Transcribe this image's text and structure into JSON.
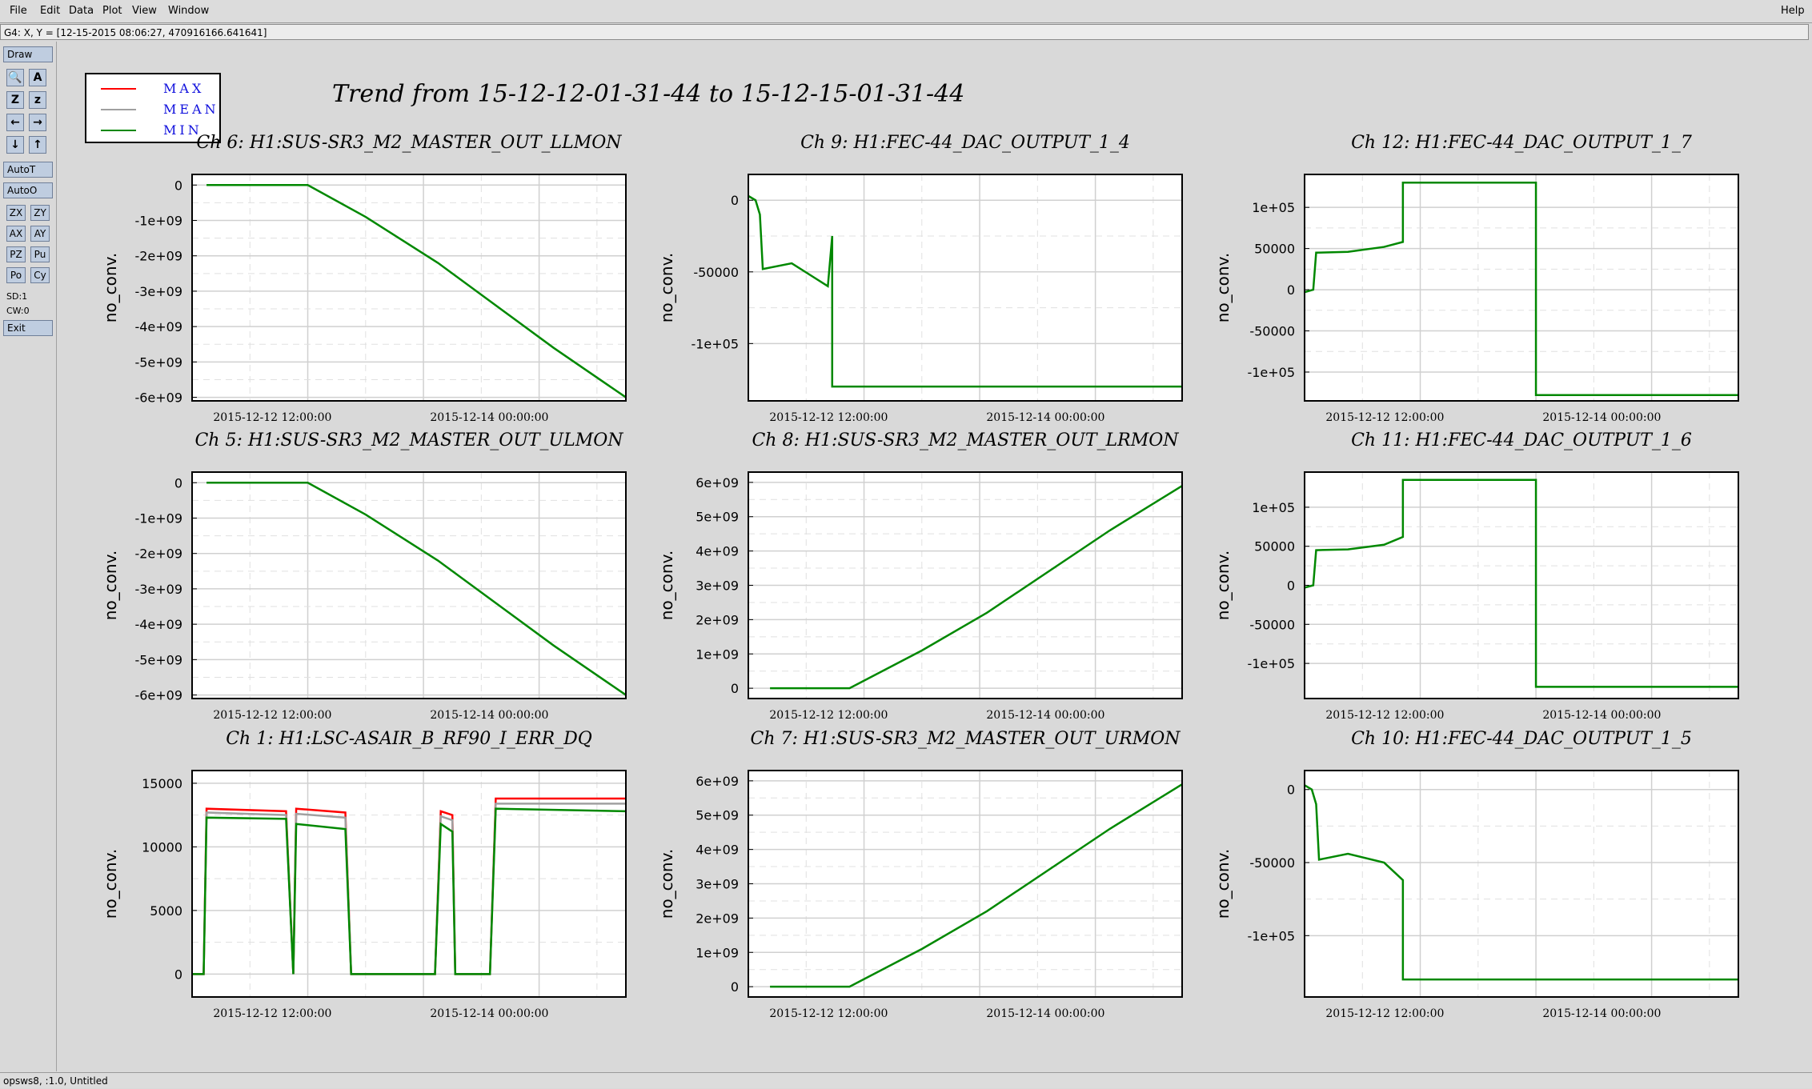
{
  "menu": {
    "file": "File",
    "edit": "Edit",
    "data": "Data",
    "plot": "Plot",
    "view": "View",
    "window": "Window",
    "help": "Help"
  },
  "coord_readout": "G4: X, Y = [12-15-2015 08:06:27, 470916166.641641]",
  "sidebar": {
    "draw": "Draw",
    "icons": [
      "zoom-icon",
      "as-icon",
      "z-large-icon",
      "z-small-icon",
      "left-arrow-icon",
      "right-arrow-icon",
      "down-arrow-icon",
      "up-arrow-icon"
    ],
    "icon_glyphs": [
      "🔍",
      "A",
      "Z",
      "z",
      "←",
      "→",
      "↓",
      "↑"
    ],
    "autot": "AutoT",
    "autoo": "AutoO",
    "small_buttons": [
      "ZX",
      "ZY",
      "AX",
      "AY",
      "PZ",
      "Pu",
      "Po",
      "Cy"
    ],
    "sd": "SD:1",
    "cw": "CW:0",
    "exit": "Exit"
  },
  "status": "opsws8, :1.0, Untitled",
  "main_title": "Trend from 15-12-12-01-31-44 to 15-12-15-01-31-44",
  "legend": [
    {
      "label": "MAX",
      "color": "#ff0000"
    },
    {
      "label": "MEAN",
      "color": "#a0a0a0"
    },
    {
      "label": "MIN",
      "color": "#008800"
    }
  ],
  "colors": {
    "max": "#ff0000",
    "mean": "#a0a0a0",
    "min": "#008800",
    "grid": "#c8c8c8"
  },
  "chart_data": [
    {
      "type": "line",
      "title": "Ch 6: H1:SUS-SR3_M2_MASTER_OUT_LLMON",
      "ylabel": "no_conv.",
      "xticks": [
        "2015-12-12 12:00:00",
        "2015-12-14 00:00:00"
      ],
      "yticks": [
        "0",
        "-1e+09",
        "-2e+09",
        "-3e+09",
        "-4e+09",
        "-5e+09",
        "-6e+09"
      ],
      "ylim": [
        -6100000000.0,
        300000000.0
      ],
      "series": [
        {
          "x": [
            0.1,
            0.8,
            1.2,
            1.7,
            2.5,
            3.0
          ],
          "y": [
            0,
            0,
            -900000000.0,
            -2200000000.0,
            -4600000000.0,
            -6000000000.0
          ]
        }
      ]
    },
    {
      "type": "line",
      "title": "Ch 9: H1:FEC-44_DAC_OUTPUT_1_4",
      "ylabel": "no_conv.",
      "xticks": [
        "2015-12-12 12:00:00",
        "2015-12-14 00:00:00"
      ],
      "yticks": [
        "0",
        "-50000",
        "-1e+05"
      ],
      "ylim": [
        -140000,
        18000
      ],
      "series": [
        {
          "x": [
            0.0,
            0.05,
            0.08,
            0.1,
            0.3,
            0.55,
            0.58,
            0.58,
            3.0
          ],
          "y": [
            3000,
            0,
            -10000,
            -48000,
            -44000,
            -60000,
            -25000,
            -130000,
            -130000
          ]
        }
      ]
    },
    {
      "type": "line",
      "title": "Ch 12: H1:FEC-44_DAC_OUTPUT_1_7",
      "ylabel": "no_conv.",
      "xticks": [
        "2015-12-12 12:00:00",
        "2015-12-14 00:00:00"
      ],
      "yticks": [
        "1e+05",
        "50000",
        "0",
        "-50000",
        "-1e+05"
      ],
      "ylim": [
        -135000,
        140000
      ],
      "series": [
        {
          "x": [
            0.0,
            0.06,
            0.08,
            0.3,
            0.55,
            0.68,
            0.68,
            1.6,
            1.6,
            3.0
          ],
          "y": [
            -3000,
            0,
            45000,
            46000,
            52000,
            58000,
            130000,
            130000,
            -128000,
            -128000
          ]
        }
      ]
    },
    {
      "type": "line",
      "title": "Ch 5: H1:SUS-SR3_M2_MASTER_OUT_ULMON",
      "ylabel": "no_conv.",
      "xticks": [
        "2015-12-12 12:00:00",
        "2015-12-14 00:00:00"
      ],
      "yticks": [
        "0",
        "-1e+09",
        "-2e+09",
        "-3e+09",
        "-4e+09",
        "-5e+09",
        "-6e+09"
      ],
      "ylim": [
        -6100000000.0,
        300000000.0
      ],
      "series": [
        {
          "x": [
            0.1,
            0.8,
            1.2,
            1.7,
            2.5,
            3.0
          ],
          "y": [
            0,
            0,
            -900000000.0,
            -2200000000.0,
            -4600000000.0,
            -6000000000.0
          ]
        }
      ]
    },
    {
      "type": "line",
      "title": "Ch 8: H1:SUS-SR3_M2_MASTER_OUT_LRMON",
      "ylabel": "no_conv.",
      "xticks": [
        "2015-12-12 12:00:00",
        "2015-12-14 00:00:00"
      ],
      "yticks": [
        "6e+09",
        "5e+09",
        "4e+09",
        "3e+09",
        "2e+09",
        "1e+09",
        "0"
      ],
      "ylim": [
        -300000000.0,
        6300000000.0
      ],
      "series": [
        {
          "x": [
            0.15,
            0.7,
            1.2,
            1.65,
            2.5,
            3.0
          ],
          "y": [
            0,
            0,
            1100000000.0,
            2200000000.0,
            4600000000.0,
            5900000000.0
          ]
        }
      ]
    },
    {
      "type": "line",
      "title": "Ch 11: H1:FEC-44_DAC_OUTPUT_1_6",
      "ylabel": "no_conv.",
      "xticks": [
        "2015-12-12 12:00:00",
        "2015-12-14 00:00:00"
      ],
      "yticks": [
        "1e+05",
        "50000",
        "0",
        "-50000",
        "-1e+05"
      ],
      "ylim": [
        -145000,
        145000
      ],
      "series": [
        {
          "x": [
            0.0,
            0.06,
            0.08,
            0.3,
            0.55,
            0.68,
            0.68,
            1.6,
            1.6,
            3.0
          ],
          "y": [
            -3000,
            0,
            45000,
            46000,
            52000,
            62000,
            135000,
            135000,
            -130000,
            -130000
          ]
        }
      ]
    },
    {
      "type": "line",
      "title": "Ch 1: H1:LSC-ASAIR_B_RF90_I_ERR_DQ",
      "ylabel": "no_conv.",
      "xticks": [
        "2015-12-12 12:00:00",
        "2015-12-14 00:00:00"
      ],
      "yticks": [
        "15000",
        "10000",
        "5000",
        "0"
      ],
      "ylim": [
        -1800,
        16000
      ],
      "series": [
        {
          "name": "MAX",
          "x": [
            0.0,
            0.08,
            0.1,
            0.65,
            0.7,
            0.72,
            1.06,
            1.1,
            1.68,
            1.72,
            1.8,
            1.82,
            2.06,
            2.1,
            3.0
          ],
          "y": [
            0,
            0,
            13000,
            12800,
            0,
            13000,
            12700,
            0,
            0,
            12800,
            12500,
            0,
            0,
            13800,
            13800
          ]
        },
        {
          "name": "MEAN",
          "x": [
            0.0,
            0.08,
            0.1,
            0.65,
            0.7,
            0.72,
            1.06,
            1.1,
            1.68,
            1.72,
            1.8,
            1.82,
            2.06,
            2.1,
            3.0
          ],
          "y": [
            0,
            0,
            12700,
            12500,
            0,
            12600,
            12300,
            0,
            0,
            12400,
            12100,
            0,
            0,
            13400,
            13400
          ]
        },
        {
          "name": "MIN",
          "x": [
            0.0,
            0.08,
            0.1,
            0.65,
            0.7,
            0.72,
            1.06,
            1.1,
            1.68,
            1.72,
            1.8,
            1.82,
            2.06,
            2.1,
            3.0
          ],
          "y": [
            0,
            0,
            12300,
            12200,
            0,
            11800,
            11400,
            0,
            0,
            11800,
            11200,
            0,
            0,
            13000,
            12800
          ]
        }
      ]
    },
    {
      "type": "line",
      "title": "Ch 7: H1:SUS-SR3_M2_MASTER_OUT_URMON",
      "ylabel": "no_conv.",
      "xticks": [
        "2015-12-12 12:00:00",
        "2015-12-14 00:00:00"
      ],
      "yticks": [
        "6e+09",
        "5e+09",
        "4e+09",
        "3e+09",
        "2e+09",
        "1e+09",
        "0"
      ],
      "ylim": [
        -300000000.0,
        6300000000.0
      ],
      "series": [
        {
          "x": [
            0.15,
            0.7,
            1.2,
            1.65,
            2.5,
            3.0
          ],
          "y": [
            0,
            0,
            1100000000.0,
            2200000000.0,
            4600000000.0,
            5900000000.0
          ]
        }
      ]
    },
    {
      "type": "line",
      "title": "Ch 10: H1:FEC-44_DAC_OUTPUT_1_5",
      "ylabel": "no_conv.",
      "xticks": [
        "2015-12-12 12:00:00",
        "2015-12-14 00:00:00"
      ],
      "yticks": [
        "0",
        "-50000",
        "-1e+05"
      ],
      "ylim": [
        -142000,
        13000
      ],
      "series": [
        {
          "x": [
            0.0,
            0.05,
            0.08,
            0.1,
            0.3,
            0.55,
            0.68,
            0.68,
            3.0
          ],
          "y": [
            3000,
            0,
            -10000,
            -48000,
            -44000,
            -50000,
            -62000,
            -130000,
            -130000
          ]
        }
      ]
    }
  ]
}
